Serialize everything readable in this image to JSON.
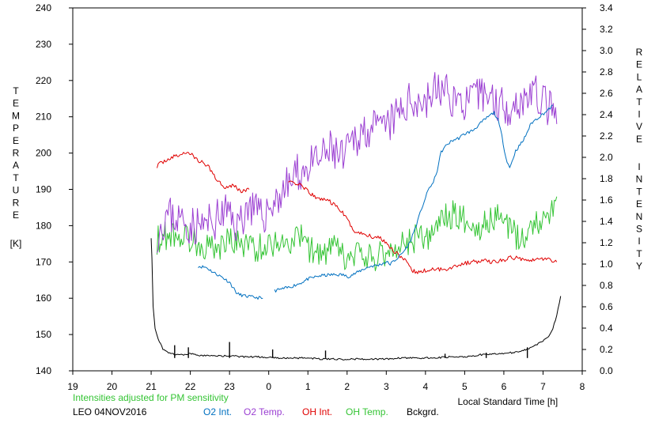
{
  "chart_data": {
    "type": "line",
    "x_axis": {
      "label": "Local Standard Time [h]",
      "range": [
        19,
        32
      ],
      "ticks": [
        19,
        20,
        21,
        22,
        23,
        24,
        25,
        26,
        27,
        28,
        29,
        30,
        31,
        32
      ],
      "tick_labels": [
        "19",
        "20",
        "21",
        "22",
        "23",
        "0",
        "1",
        "2",
        "3",
        "4",
        "5",
        "6",
        "7",
        "8"
      ]
    },
    "y_left": {
      "label_letters": [
        "T",
        "E",
        "M",
        "P",
        "E",
        "R",
        "A",
        "T",
        "U",
        "R",
        "E"
      ],
      "unit": "[K]",
      "range": [
        140,
        240
      ],
      "ticks": [
        140,
        150,
        160,
        170,
        180,
        190,
        200,
        210,
        220,
        230,
        240
      ]
    },
    "y_right": {
      "label_word1": [
        "R",
        "E",
        "L",
        "A",
        "T",
        "I",
        "V",
        "E"
      ],
      "label_word2": [
        "I",
        "N",
        "T",
        "E",
        "N",
        "S",
        "I",
        "T",
        "Y"
      ],
      "range": [
        0.0,
        3.4
      ],
      "ticks": [
        "0.0",
        "0.2",
        "0.4",
        "0.6",
        "0.8",
        "1.0",
        "1.2",
        "1.4",
        "1.6",
        "1.8",
        "2.0",
        "2.2",
        "2.4",
        "2.6",
        "2.8",
        "3.0",
        "3.2",
        "3.4"
      ]
    },
    "note": "Intensities adjusted for PM sensitivity",
    "station": "LEO 04NOV2016",
    "grid": false,
    "legend_position": "bottom",
    "series": [
      {
        "name": "O2 Int.",
        "axis": "right",
        "color": "#0070c0",
        "noise": 0.015,
        "seed": 11,
        "segments": [
          [
            [
              22.2,
              0.98
            ],
            [
              22.4,
              0.97
            ],
            [
              22.6,
              0.92
            ],
            [
              22.8,
              0.88
            ],
            [
              23.0,
              0.83
            ],
            [
              23.2,
              0.72
            ],
            [
              23.4,
              0.7
            ],
            [
              23.6,
              0.69
            ],
            [
              23.85,
              0.68
            ]
          ],
          [
            [
              24.15,
              0.75
            ],
            [
              24.5,
              0.78
            ],
            [
              24.8,
              0.82
            ],
            [
              25.0,
              0.86
            ],
            [
              25.3,
              0.89
            ],
            [
              25.6,
              0.9
            ],
            [
              25.9,
              0.9
            ],
            [
              26.0,
              0.88
            ],
            [
              26.2,
              0.91
            ],
            [
              26.4,
              0.95
            ],
            [
              26.6,
              0.98
            ],
            [
              26.8,
              0.99
            ],
            [
              27.0,
              1.02
            ],
            [
              27.1,
              1.0
            ],
            [
              27.3,
              1.06
            ],
            [
              27.45,
              1.12
            ],
            [
              27.6,
              1.2
            ],
            [
              27.7,
              1.3
            ],
            [
              27.8,
              1.4
            ],
            [
              27.9,
              1.52
            ],
            [
              28.0,
              1.62
            ],
            [
              28.1,
              1.72
            ],
            [
              28.2,
              1.76
            ],
            [
              28.3,
              1.88
            ],
            [
              28.4,
              2.05
            ],
            [
              28.55,
              2.12
            ],
            [
              28.7,
              2.16
            ],
            [
              28.85,
              2.18
            ],
            [
              29.0,
              2.22
            ],
            [
              29.2,
              2.25
            ],
            [
              29.35,
              2.3
            ],
            [
              29.5,
              2.35
            ],
            [
              29.6,
              2.38
            ],
            [
              29.75,
              2.42
            ],
            [
              29.85,
              2.35
            ],
            [
              29.95,
              2.2
            ],
            [
              30.05,
              2.0
            ],
            [
              30.15,
              1.9
            ],
            [
              30.3,
              2.06
            ],
            [
              30.5,
              2.16
            ],
            [
              30.7,
              2.32
            ],
            [
              30.9,
              2.38
            ],
            [
              31.05,
              2.42
            ],
            [
              31.15,
              2.45
            ],
            [
              31.25,
              2.49
            ]
          ]
        ]
      },
      {
        "name": "O2 Temp.",
        "axis": "left",
        "color": "#9b3fd2",
        "noise": 5.5,
        "seed": 23,
        "segments": [
          [
            [
              21.15,
              178
            ],
            [
              21.4,
              183
            ],
            [
              21.7,
              182
            ],
            [
              22.0,
              180
            ],
            [
              22.3,
              180
            ],
            [
              22.6,
              181
            ],
            [
              22.9,
              184
            ],
            [
              23.2,
              180
            ],
            [
              23.5,
              186
            ],
            [
              23.8,
              182
            ],
            [
              24.1,
              186
            ],
            [
              24.4,
              190
            ],
            [
              24.7,
              194
            ],
            [
              25.0,
              196
            ],
            [
              25.3,
              198
            ],
            [
              25.6,
              201
            ],
            [
              25.9,
              198
            ],
            [
              26.2,
              204
            ],
            [
              26.5,
              207
            ],
            [
              26.8,
              206
            ],
            [
              27.1,
              208
            ],
            [
              27.4,
              212
            ],
            [
              27.7,
              215
            ],
            [
              28.0,
              214
            ],
            [
              28.3,
              218
            ],
            [
              28.6,
              216
            ],
            [
              28.9,
              214
            ],
            [
              29.2,
              214
            ],
            [
              29.5,
              217
            ],
            [
              29.8,
              214
            ],
            [
              30.1,
              213
            ],
            [
              30.4,
              214
            ],
            [
              30.7,
              217
            ],
            [
              31.0,
              214
            ],
            [
              31.2,
              212
            ],
            [
              31.35,
              208
            ]
          ]
        ]
      },
      {
        "name": "OH Int.",
        "axis": "right",
        "color": "#e00000",
        "noise": 0.02,
        "seed": 37,
        "segments": [
          [
            [
              21.15,
              1.92
            ],
            [
              21.4,
              1.98
            ],
            [
              21.7,
              2.02
            ],
            [
              21.95,
              2.05
            ],
            [
              22.2,
              1.97
            ],
            [
              22.45,
              1.92
            ],
            [
              22.7,
              1.78
            ],
            [
              22.9,
              1.72
            ],
            [
              23.1,
              1.74
            ],
            [
              23.3,
              1.68
            ],
            [
              23.5,
              1.7
            ]
          ],
          [
            [
              24.5,
              1.78
            ],
            [
              24.75,
              1.75
            ],
            [
              25.0,
              1.68
            ],
            [
              25.2,
              1.62
            ],
            [
              25.5,
              1.6
            ],
            [
              25.8,
              1.52
            ],
            [
              26.0,
              1.42
            ],
            [
              26.2,
              1.3
            ],
            [
              26.45,
              1.28
            ],
            [
              26.7,
              1.25
            ],
            [
              26.85,
              1.25
            ],
            [
              27.0,
              1.2
            ],
            [
              27.2,
              1.12
            ],
            [
              27.35,
              1.08
            ],
            [
              27.5,
              1.02
            ],
            [
              27.65,
              0.94
            ],
            [
              27.8,
              0.92
            ],
            [
              28.0,
              0.94
            ],
            [
              28.3,
              0.95
            ],
            [
              28.6,
              0.96
            ],
            [
              28.9,
              1.0
            ],
            [
              29.2,
              1.02
            ],
            [
              29.5,
              1.03
            ],
            [
              29.8,
              1.02
            ],
            [
              30.0,
              1.04
            ],
            [
              30.2,
              1.06
            ],
            [
              30.5,
              1.05
            ],
            [
              30.8,
              1.04
            ],
            [
              31.0,
              1.05
            ],
            [
              31.2,
              1.04
            ],
            [
              31.35,
              1.02
            ]
          ]
        ]
      },
      {
        "name": "OH Temp.",
        "axis": "left",
        "color": "#34c434",
        "noise": 4.0,
        "seed": 53,
        "segments": [
          [
            [
              21.15,
              176
            ],
            [
              21.5,
              178
            ],
            [
              21.8,
              177
            ],
            [
              22.1,
              176
            ],
            [
              22.4,
              174
            ],
            [
              22.7,
              174
            ],
            [
              23.0,
              176
            ],
            [
              23.3,
              175
            ],
            [
              23.6,
              174
            ],
            [
              23.9,
              174
            ],
            [
              24.2,
              176
            ],
            [
              24.5,
              175
            ],
            [
              24.8,
              177
            ],
            [
              25.1,
              173
            ],
            [
              25.4,
              172
            ],
            [
              25.7,
              174
            ],
            [
              26.0,
              170
            ],
            [
              26.3,
              172
            ],
            [
              26.6,
              171
            ],
            [
              26.9,
              172
            ],
            [
              27.2,
              174
            ],
            [
              27.5,
              175
            ],
            [
              27.8,
              177
            ],
            [
              28.1,
              176
            ],
            [
              28.4,
              182
            ],
            [
              28.7,
              183
            ],
            [
              29.0,
              182
            ],
            [
              29.3,
              179
            ],
            [
              29.6,
              181
            ],
            [
              29.9,
              183
            ],
            [
              30.2,
              178
            ],
            [
              30.5,
              176
            ],
            [
              30.8,
              182
            ],
            [
              31.1,
              181
            ],
            [
              31.35,
              188
            ]
          ]
        ]
      },
      {
        "name": "Bckgrd.",
        "axis": "right",
        "color": "#000000",
        "noise": 0.008,
        "seed": 71,
        "segments": [
          [
            [
              21.0,
              1.25
            ],
            [
              21.02,
              1.05
            ],
            [
              21.05,
              0.6
            ],
            [
              21.1,
              0.4
            ],
            [
              21.18,
              0.3
            ],
            [
              21.3,
              0.2
            ],
            [
              21.5,
              0.16
            ],
            [
              21.8,
              0.15
            ],
            [
              22.0,
              0.16
            ],
            [
              22.3,
              0.14
            ],
            [
              22.6,
              0.14
            ],
            [
              23.0,
              0.14
            ],
            [
              23.4,
              0.13
            ],
            [
              23.8,
              0.13
            ],
            [
              24.2,
              0.12
            ],
            [
              24.6,
              0.12
            ],
            [
              25.0,
              0.12
            ],
            [
              25.4,
              0.11
            ],
            [
              25.8,
              0.11
            ],
            [
              26.2,
              0.11
            ],
            [
              26.6,
              0.11
            ],
            [
              27.0,
              0.11
            ],
            [
              27.4,
              0.12
            ],
            [
              27.8,
              0.12
            ],
            [
              28.2,
              0.12
            ],
            [
              28.6,
              0.13
            ],
            [
              29.0,
              0.13
            ],
            [
              29.4,
              0.15
            ],
            [
              29.8,
              0.16
            ],
            [
              30.2,
              0.17
            ],
            [
              30.5,
              0.19
            ],
            [
              30.7,
              0.22
            ],
            [
              30.85,
              0.25
            ],
            [
              31.0,
              0.28
            ],
            [
              31.15,
              0.32
            ],
            [
              31.25,
              0.4
            ],
            [
              31.35,
              0.52
            ],
            [
              31.45,
              0.7
            ]
          ]
        ],
        "spikes": [
          [
            21.6,
            0.24
          ],
          [
            21.95,
            0.22
          ],
          [
            23.0,
            0.27
          ],
          [
            24.1,
            0.2
          ],
          [
            25.45,
            0.19
          ],
          [
            28.5,
            0.16
          ],
          [
            29.55,
            0.17
          ],
          [
            30.6,
            0.22
          ]
        ]
      }
    ]
  },
  "legend_labels": [
    "O2 Int.",
    "O2 Temp.",
    "OH Int.",
    "OH Temp.",
    "Bckgrd."
  ],
  "colors": {
    "o2_int": "#0070c0",
    "o2_temp": "#9b3fd2",
    "oh_int": "#e00000",
    "oh_temp": "#34c434",
    "background": "#000000",
    "note": "#34c434"
  }
}
